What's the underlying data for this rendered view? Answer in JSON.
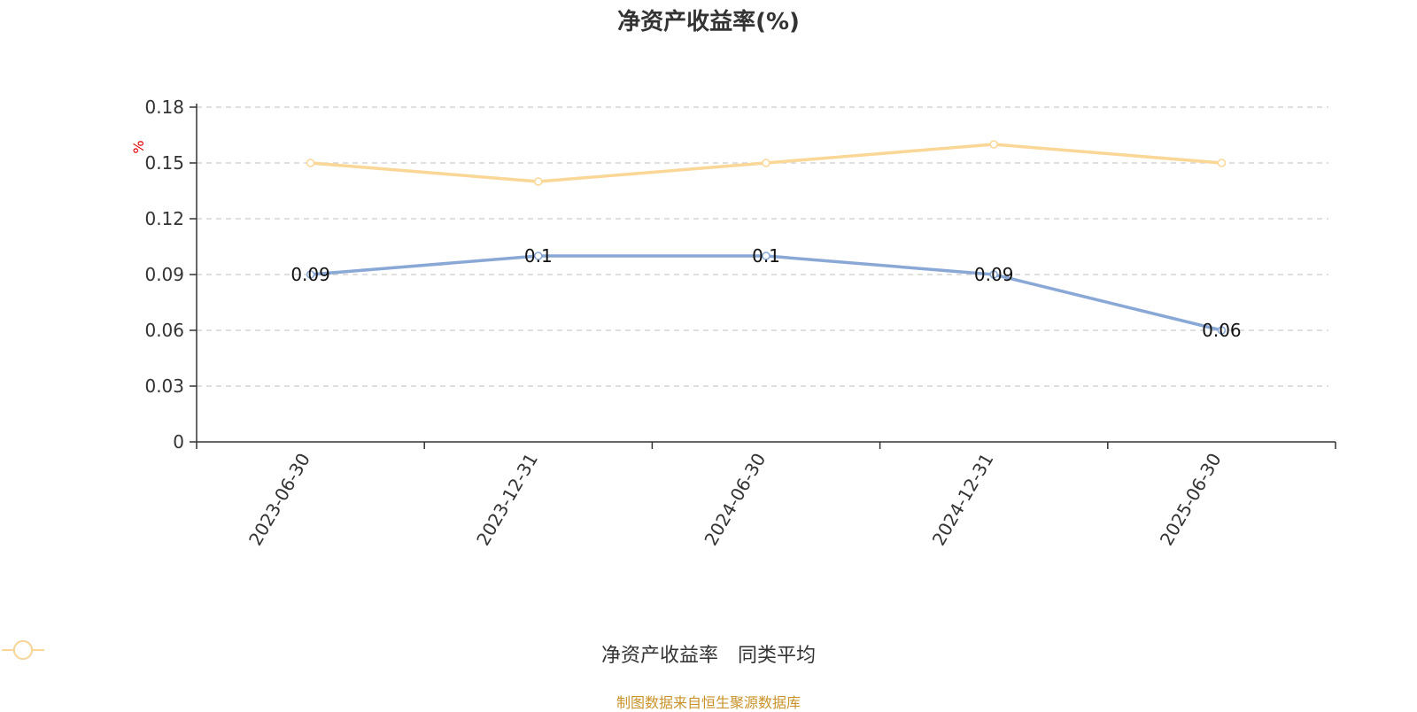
{
  "title": "净资产收益率(%)",
  "source_note": "制图数据来自恒生聚源数据库",
  "source_color": "#c8932a",
  "chart_data": {
    "type": "line",
    "unit": "%",
    "categories": [
      "2023-06-30",
      "2023-12-31",
      "2024-06-30",
      "2024-12-31",
      "2025-06-30"
    ],
    "series": [
      {
        "name": "净资产收益率",
        "values": [
          0.09,
          0.1,
          0.1,
          0.09,
          0.06
        ],
        "color": "#8aa8d6",
        "show_labels": true
      },
      {
        "name": "同类平均",
        "values": [
          0.15,
          0.14,
          0.15,
          0.16,
          0.15
        ],
        "color": "#fad797",
        "show_labels": false
      }
    ],
    "y_ticks": [
      "0",
      "0.03",
      "0.06",
      "0.09",
      "0.12",
      "0.15",
      "0.18"
    ],
    "ylim": [
      0,
      0.18
    ],
    "grid": true,
    "legend_position": "bottom"
  }
}
